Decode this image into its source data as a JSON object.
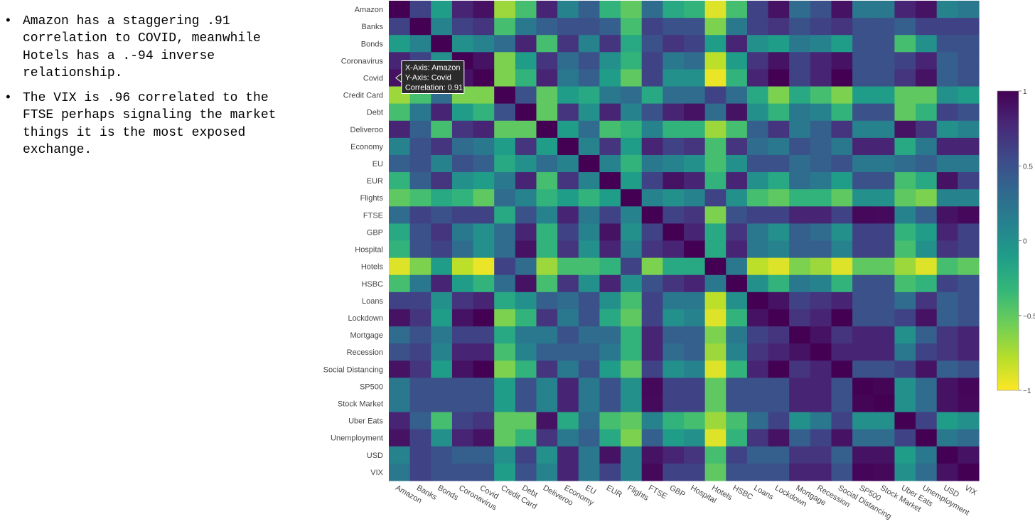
{
  "notes": [
    "Amazon has a staggering .91 correlation to COVID, meanwhile Hotels has a .-94 inverse relationship.",
    "The VIX is .96 correlated to the FTSE perhaps signaling the market things it is the most exposed exchange."
  ],
  "bullet_char": "•",
  "chart_data": {
    "type": "heatmap",
    "title": "",
    "labels": [
      "Amazon",
      "Banks",
      "Bonds",
      "Coronavirus",
      "Covid",
      "Credit Card",
      "Debt",
      "Deliveroo",
      "Economy",
      "EU",
      "EUR",
      "Flights",
      "FTSE",
      "GBP",
      "Hospital",
      "Hotels",
      "HSBC",
      "Loans",
      "Lockdown",
      "Mortgage",
      "Recession",
      "Social Distancing",
      "SP500",
      "Stock Market",
      "Uber Eats",
      "Unemployment",
      "USD",
      "VIX"
    ],
    "zmin": -1,
    "zmax": 1,
    "colorbar_ticks": [
      1,
      0.5,
      0,
      -0.5,
      -1
    ],
    "colorbar_tick_labels": [
      "1",
      "0.5",
      "0",
      "−0.5",
      "−1"
    ],
    "colorscale": [
      "#fde725",
      "#b5de2b",
      "#6ece58",
      "#35b779",
      "#1f9e89",
      "#26828e",
      "#31688e",
      "#3e4989",
      "#482878",
      "#440154"
    ],
    "tooltip": {
      "x_label": "X-Axis: Amazon",
      "y_label": "Y-Axis: Covid",
      "value_label": "Correlation: 0.91",
      "x": "Amazon",
      "y": "Covid",
      "value": 0.91
    },
    "z": [
      [
        1.0,
        0.6,
        -0.1,
        0.8,
        0.91,
        -0.7,
        -0.4,
        0.8,
        0.1,
        0.4,
        -0.3,
        -0.5,
        0.3,
        -0.2,
        -0.3,
        -0.9,
        -0.4,
        0.6,
        0.9,
        0.3,
        0.5,
        0.9,
        0.2,
        0.2,
        0.8,
        0.9,
        0.1,
        0.2
      ],
      [
        0.6,
        1.0,
        0.1,
        0.6,
        0.7,
        -0.4,
        0.2,
        0.4,
        0.5,
        0.5,
        0.4,
        -0.4,
        0.6,
        0.5,
        0.5,
        -0.6,
        0.2,
        0.6,
        0.7,
        0.5,
        0.6,
        0.7,
        0.5,
        0.5,
        0.4,
        0.6,
        0.6,
        0.6
      ],
      [
        -0.1,
        0.1,
        1.0,
        0.0,
        0.1,
        0.3,
        0.8,
        -0.4,
        0.7,
        0.1,
        0.7,
        -0.2,
        0.5,
        0.7,
        0.6,
        -0.1,
        0.8,
        0.0,
        -0.1,
        0.2,
        0.1,
        -0.1,
        0.5,
        0.5,
        -0.4,
        0.0,
        0.5,
        0.5
      ],
      [
        0.8,
        0.6,
        0.0,
        1.0,
        0.9,
        -0.6,
        -0.1,
        0.7,
        0.3,
        0.5,
        0.0,
        -0.3,
        0.6,
        0.2,
        0.3,
        -0.8,
        -0.1,
        0.7,
        0.9,
        0.6,
        0.8,
        0.9,
        0.5,
        0.5,
        0.6,
        0.8,
        0.4,
        0.5
      ],
      [
        0.91,
        0.7,
        0.1,
        0.9,
        1.0,
        -0.6,
        -0.3,
        0.8,
        0.2,
        0.4,
        -0.1,
        -0.5,
        0.6,
        0.0,
        0.0,
        -0.94,
        -0.3,
        0.8,
        1.0,
        0.6,
        0.8,
        1.0,
        0.5,
        0.5,
        0.7,
        0.9,
        0.4,
        0.5
      ],
      [
        -0.7,
        -0.4,
        0.3,
        -0.6,
        -0.6,
        1.0,
        0.5,
        -0.5,
        -0.1,
        -0.2,
        0.2,
        0.3,
        -0.2,
        0.3,
        0.3,
        0.6,
        0.3,
        -0.2,
        -0.6,
        -0.2,
        -0.4,
        -0.6,
        -0.1,
        -0.1,
        -0.5,
        -0.5,
        0.0,
        -0.1
      ],
      [
        -0.4,
        0.2,
        0.8,
        -0.1,
        -0.3,
        0.5,
        1.0,
        -0.5,
        0.7,
        0.0,
        0.8,
        0.1,
        0.5,
        0.8,
        0.9,
        0.3,
        0.9,
        0.0,
        -0.3,
        0.2,
        0.1,
        -0.3,
        0.5,
        0.5,
        -0.5,
        -0.3,
        0.6,
        0.5
      ],
      [
        0.8,
        0.4,
        -0.4,
        0.7,
        0.8,
        -0.5,
        -0.5,
        1.0,
        -0.1,
        0.3,
        -0.4,
        -0.3,
        0.1,
        -0.3,
        -0.3,
        -0.7,
        -0.4,
        0.4,
        0.7,
        0.2,
        0.4,
        0.7,
        0.1,
        0.1,
        0.9,
        0.7,
        0.0,
        0.1
      ],
      [
        0.1,
        0.5,
        0.7,
        0.3,
        0.2,
        -0.1,
        0.7,
        -0.1,
        1.0,
        0.1,
        0.7,
        -0.1,
        0.8,
        0.6,
        0.7,
        -0.4,
        0.7,
        0.3,
        0.2,
        0.5,
        0.4,
        0.2,
        0.8,
        0.8,
        -0.2,
        0.2,
        0.8,
        0.8
      ],
      [
        0.4,
        0.5,
        0.1,
        0.5,
        0.4,
        -0.2,
        0.0,
        0.3,
        0.1,
        1.0,
        0.1,
        -0.3,
        0.2,
        0.1,
        0.0,
        -0.4,
        0.0,
        0.5,
        0.5,
        0.3,
        0.4,
        0.5,
        0.2,
        0.2,
        0.3,
        0.4,
        0.2,
        0.2
      ],
      [
        -0.3,
        0.4,
        0.7,
        0.0,
        -0.1,
        0.2,
        0.8,
        -0.4,
        0.7,
        0.1,
        1.0,
        -0.1,
        0.6,
        0.9,
        0.8,
        -0.3,
        0.8,
        0.0,
        -0.2,
        0.3,
        0.2,
        -0.1,
        0.5,
        0.5,
        -0.4,
        -0.2,
        0.9,
        0.6
      ],
      [
        -0.5,
        -0.4,
        -0.2,
        -0.3,
        -0.5,
        0.3,
        0.1,
        -0.3,
        -0.1,
        -0.3,
        -0.1,
        1.0,
        0.1,
        0.0,
        0.1,
        0.6,
        0.0,
        -0.4,
        -0.5,
        -0.3,
        -0.3,
        -0.5,
        0.0,
        0.0,
        -0.5,
        -0.6,
        0.1,
        0.1
      ],
      [
        0.3,
        0.6,
        0.5,
        0.6,
        0.6,
        -0.2,
        0.5,
        0.1,
        0.8,
        0.2,
        0.6,
        0.1,
        1.0,
        0.6,
        0.7,
        -0.6,
        0.5,
        0.6,
        0.6,
        0.8,
        0.8,
        0.6,
        0.96,
        0.95,
        0.1,
        0.4,
        0.9,
        0.96
      ],
      [
        -0.2,
        0.5,
        0.7,
        0.2,
        0.0,
        0.3,
        0.8,
        -0.3,
        0.6,
        0.1,
        0.9,
        0.0,
        0.6,
        1.0,
        0.8,
        -0.2,
        0.7,
        0.2,
        0.0,
        0.4,
        0.3,
        0.0,
        0.6,
        0.6,
        -0.3,
        -0.1,
        0.8,
        0.6
      ],
      [
        -0.3,
        0.5,
        0.6,
        0.3,
        0.0,
        0.3,
        0.9,
        -0.3,
        0.7,
        0.0,
        0.8,
        0.1,
        0.7,
        0.8,
        1.0,
        -0.2,
        0.8,
        0.2,
        0.1,
        0.4,
        0.4,
        0.1,
        0.6,
        0.6,
        -0.4,
        0.0,
        0.7,
        0.6
      ],
      [
        -0.9,
        -0.6,
        -0.1,
        -0.8,
        -0.94,
        0.6,
        0.3,
        -0.7,
        -0.4,
        -0.4,
        -0.3,
        0.6,
        -0.6,
        -0.2,
        -0.2,
        1.0,
        0.2,
        -0.8,
        -0.9,
        -0.6,
        -0.7,
        -0.9,
        -0.5,
        -0.5,
        -0.7,
        -0.9,
        -0.4,
        -0.5
      ],
      [
        -0.4,
        0.2,
        0.8,
        -0.1,
        -0.3,
        0.3,
        0.9,
        -0.4,
        0.7,
        0.0,
        0.8,
        0.0,
        0.5,
        0.7,
        0.8,
        0.2,
        1.0,
        0.0,
        -0.3,
        0.2,
        0.1,
        -0.3,
        0.5,
        0.5,
        -0.4,
        -0.3,
        0.6,
        0.5
      ],
      [
        0.6,
        0.6,
        0.0,
        0.7,
        0.8,
        -0.2,
        0.0,
        0.4,
        0.3,
        0.5,
        0.0,
        -0.4,
        0.6,
        0.2,
        0.2,
        -0.8,
        0.0,
        1.0,
        0.9,
        0.6,
        0.7,
        0.8,
        0.5,
        0.5,
        0.3,
        0.7,
        0.4,
        0.5
      ],
      [
        0.9,
        0.7,
        -0.1,
        0.9,
        1.0,
        -0.6,
        -0.3,
        0.7,
        0.2,
        0.5,
        -0.2,
        -0.5,
        0.6,
        0.0,
        0.1,
        -0.9,
        -0.3,
        0.9,
        1.0,
        0.7,
        0.8,
        1.0,
        0.5,
        0.5,
        0.6,
        0.9,
        0.4,
        0.5
      ],
      [
        0.3,
        0.5,
        0.2,
        0.6,
        0.6,
        -0.2,
        0.2,
        0.2,
        0.5,
        0.3,
        0.3,
        -0.3,
        0.8,
        0.4,
        0.4,
        -0.6,
        0.2,
        0.6,
        0.7,
        1.0,
        0.9,
        0.7,
        0.8,
        0.8,
        0.0,
        0.4,
        0.7,
        0.8
      ],
      [
        0.5,
        0.6,
        0.1,
        0.8,
        0.8,
        -0.4,
        0.1,
        0.4,
        0.4,
        0.4,
        0.2,
        -0.3,
        0.8,
        0.3,
        0.4,
        -0.7,
        0.1,
        0.7,
        0.8,
        0.9,
        1.0,
        0.8,
        0.8,
        0.8,
        0.2,
        0.6,
        0.7,
        0.8
      ],
      [
        0.9,
        0.7,
        -0.1,
        0.9,
        1.0,
        -0.6,
        -0.3,
        0.7,
        0.2,
        0.5,
        -0.1,
        -0.5,
        0.6,
        0.0,
        0.1,
        -0.9,
        -0.3,
        0.8,
        1.0,
        0.7,
        0.8,
        1.0,
        0.5,
        0.5,
        0.6,
        0.9,
        0.4,
        0.5
      ],
      [
        0.2,
        0.5,
        0.5,
        0.5,
        0.5,
        -0.1,
        0.5,
        0.1,
        0.8,
        0.2,
        0.5,
        0.0,
        0.96,
        0.6,
        0.6,
        -0.5,
        0.5,
        0.5,
        0.5,
        0.8,
        0.8,
        0.5,
        1.0,
        0.98,
        0.0,
        0.3,
        0.9,
        0.97
      ],
      [
        0.2,
        0.5,
        0.5,
        0.5,
        0.5,
        -0.1,
        0.5,
        0.1,
        0.8,
        0.2,
        0.5,
        0.0,
        0.95,
        0.6,
        0.6,
        -0.5,
        0.5,
        0.5,
        0.5,
        0.8,
        0.8,
        0.5,
        0.98,
        1.0,
        0.0,
        0.3,
        0.9,
        0.96
      ],
      [
        0.8,
        0.4,
        -0.4,
        0.6,
        0.7,
        -0.5,
        -0.5,
        0.9,
        -0.2,
        0.3,
        -0.4,
        -0.5,
        0.1,
        -0.3,
        -0.4,
        -0.7,
        -0.4,
        0.3,
        0.6,
        0.0,
        0.2,
        0.6,
        0.0,
        0.0,
        1.0,
        0.6,
        -0.1,
        0.0
      ],
      [
        0.9,
        0.6,
        0.0,
        0.8,
        0.9,
        -0.5,
        -0.3,
        0.7,
        0.2,
        0.4,
        -0.2,
        -0.6,
        0.4,
        -0.1,
        0.0,
        -0.9,
        -0.3,
        0.7,
        0.9,
        0.4,
        0.6,
        0.9,
        0.3,
        0.3,
        0.6,
        1.0,
        0.2,
        0.3
      ],
      [
        0.1,
        0.6,
        0.5,
        0.4,
        0.4,
        0.0,
        0.6,
        0.0,
        0.8,
        0.2,
        0.9,
        0.1,
        0.9,
        0.8,
        0.7,
        -0.4,
        0.6,
        0.4,
        0.4,
        0.7,
        0.7,
        0.4,
        0.9,
        0.9,
        -0.1,
        0.2,
        1.0,
        0.9
      ],
      [
        0.2,
        0.6,
        0.5,
        0.5,
        0.5,
        -0.1,
        0.5,
        0.1,
        0.8,
        0.2,
        0.6,
        0.1,
        0.96,
        0.6,
        0.6,
        -0.5,
        0.5,
        0.5,
        0.5,
        0.8,
        0.8,
        0.5,
        0.97,
        0.96,
        0.0,
        0.3,
        0.9,
        1.0
      ]
    ]
  }
}
